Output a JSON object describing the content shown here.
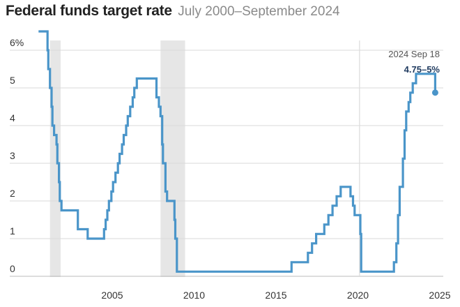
{
  "chart_data": {
    "type": "line",
    "title": "Federal funds target rate",
    "subtitle": "July 2000–September 2024",
    "xlabel": "",
    "ylabel": "",
    "xlim": [
      2000.0,
      2025.5
    ],
    "ylim": [
      0,
      6.5
    ],
    "x_ticks": [
      2005,
      2010,
      2015,
      2020,
      2025
    ],
    "x_tick_labels": [
      "2005",
      "2010",
      "2015",
      "2020",
      "2025"
    ],
    "y_ticks": [
      0,
      1,
      2,
      3,
      4,
      5,
      6
    ],
    "y_tick_labels": [
      "0",
      "1",
      "2",
      "3",
      "4",
      "5",
      "6%"
    ],
    "grid": "horizontal",
    "recession_bands": [
      [
        2001.2,
        2001.85
      ],
      [
        2007.95,
        2009.45
      ]
    ],
    "reference_line_x": 2020.1,
    "line_color": "#4a95c9",
    "band_color": "#e6e6e6",
    "grid_color": "#d9d9d9",
    "annotation": {
      "date": "2024 Sep 18",
      "value": "4.75–5%"
    },
    "series": [
      {
        "values": [
          [
            2000.5,
            6.5
          ],
          [
            2001.0,
            6.5
          ],
          [
            2001.05,
            6.0
          ],
          [
            2001.1,
            5.5
          ],
          [
            2001.2,
            5.0
          ],
          [
            2001.3,
            4.5
          ],
          [
            2001.35,
            4.0
          ],
          [
            2001.45,
            3.75
          ],
          [
            2001.6,
            3.5
          ],
          [
            2001.65,
            3.0
          ],
          [
            2001.75,
            2.5
          ],
          [
            2001.8,
            2.0
          ],
          [
            2001.9,
            1.75
          ],
          [
            2002.9,
            1.25
          ],
          [
            2003.5,
            1.0
          ],
          [
            2004.5,
            1.25
          ],
          [
            2004.6,
            1.5
          ],
          [
            2004.7,
            1.75
          ],
          [
            2004.8,
            2.0
          ],
          [
            2004.95,
            2.25
          ],
          [
            2005.05,
            2.5
          ],
          [
            2005.2,
            2.75
          ],
          [
            2005.35,
            3.0
          ],
          [
            2005.45,
            3.25
          ],
          [
            2005.6,
            3.5
          ],
          [
            2005.7,
            3.75
          ],
          [
            2005.85,
            4.0
          ],
          [
            2005.95,
            4.25
          ],
          [
            2006.1,
            4.5
          ],
          [
            2006.25,
            4.75
          ],
          [
            2006.35,
            5.0
          ],
          [
            2006.5,
            5.25
          ],
          [
            2007.6,
            5.25
          ],
          [
            2007.7,
            4.75
          ],
          [
            2007.85,
            4.5
          ],
          [
            2007.95,
            4.25
          ],
          [
            2008.05,
            3.5
          ],
          [
            2008.1,
            3.0
          ],
          [
            2008.25,
            2.25
          ],
          [
            2008.35,
            2.0
          ],
          [
            2008.8,
            1.5
          ],
          [
            2008.85,
            1.0
          ],
          [
            2008.95,
            0.125
          ],
          [
            2015.95,
            0.375
          ],
          [
            2016.95,
            0.625
          ],
          [
            2017.2,
            0.875
          ],
          [
            2017.45,
            1.125
          ],
          [
            2017.95,
            1.375
          ],
          [
            2018.2,
            1.625
          ],
          [
            2018.45,
            1.875
          ],
          [
            2018.7,
            2.125
          ],
          [
            2018.95,
            2.375
          ],
          [
            2019.55,
            2.125
          ],
          [
            2019.7,
            1.875
          ],
          [
            2019.8,
            1.625
          ],
          [
            2020.15,
            1.125
          ],
          [
            2020.2,
            0.125
          ],
          [
            2022.2,
            0.375
          ],
          [
            2022.35,
            0.875
          ],
          [
            2022.45,
            1.625
          ],
          [
            2022.55,
            2.375
          ],
          [
            2022.75,
            3.125
          ],
          [
            2022.85,
            3.875
          ],
          [
            2022.95,
            4.375
          ],
          [
            2023.1,
            4.625
          ],
          [
            2023.2,
            4.875
          ],
          [
            2023.35,
            5.125
          ],
          [
            2023.55,
            5.375
          ],
          [
            2024.7,
            5.375
          ],
          [
            2024.72,
            4.875
          ]
        ]
      }
    ]
  }
}
